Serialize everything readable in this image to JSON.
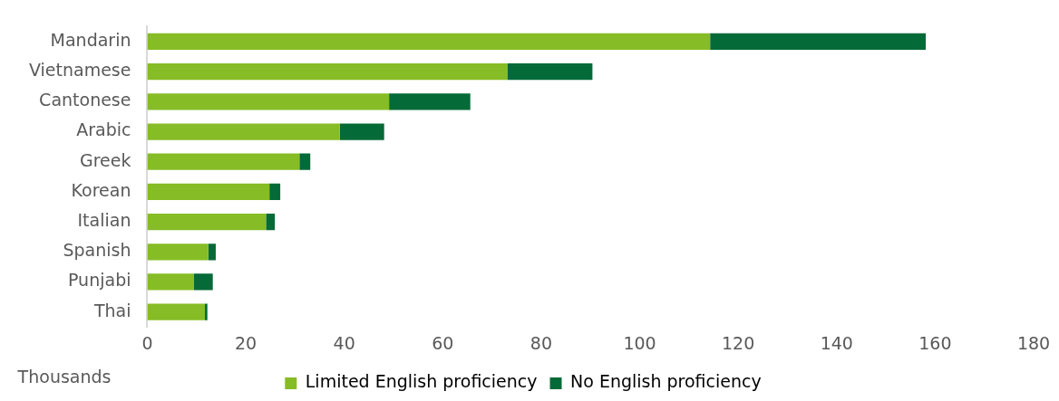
{
  "chart_data": {
    "type": "bar",
    "orientation": "horizontal",
    "stacked": true,
    "xlabel": "Thousands",
    "categories": [
      "Mandarin",
      "Vietnamese",
      "Cantonese",
      "Arabic",
      "Greek",
      "Korean",
      "Italian",
      "Spanish",
      "Punjabi",
      "Thai"
    ],
    "series": [
      {
        "name": "Limited English proficiency",
        "color": "#86bc25",
        "values": [
          114.3,
          73.1,
          49.1,
          39.1,
          30.9,
          24.8,
          24.1,
          12.4,
          9.4,
          11.7
        ]
      },
      {
        "name": "No English proficiency",
        "color": "#046a38",
        "values": [
          43.8,
          17.3,
          16.5,
          9,
          2.2,
          2.2,
          1.8,
          1.5,
          3.9,
          0.5
        ]
      }
    ],
    "xlim": [
      0,
      180
    ],
    "xticks": [
      0,
      20,
      40,
      60,
      80,
      100,
      120,
      140,
      160,
      180
    ],
    "grid": false,
    "legend": "bottom"
  }
}
